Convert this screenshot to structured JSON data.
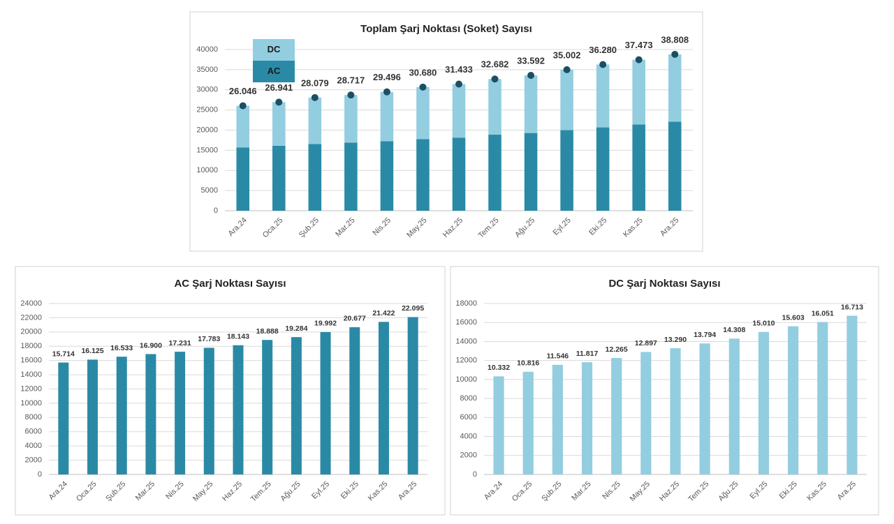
{
  "chart_data": [
    {
      "type": "stacked_bar",
      "title": "Toplam Şarj Noktası (Soket) Sayısı",
      "categories": [
        "Ara.24",
        "Oca.25",
        "Şub.25",
        "Mar.25",
        "Nis.25",
        "May.25",
        "Haz.25",
        "Tem.25",
        "Ağu.25",
        "Eyl.25",
        "Eki.25",
        "Kas.25",
        "Ara.25"
      ],
      "series": [
        {
          "name": "AC",
          "color": "#2a8aa6",
          "values": [
            15714,
            16125,
            16533,
            16900,
            17231,
            17783,
            18143,
            18888,
            19284,
            19992,
            20677,
            21422,
            22095
          ]
        },
        {
          "name": "DC",
          "color": "#93cde0",
          "values": [
            10332,
            10816,
            11546,
            11817,
            12265,
            12897,
            13290,
            13794,
            14308,
            15010,
            15603,
            16051,
            16713
          ]
        }
      ],
      "totals": {
        "color": "#1b4f63",
        "values": [
          26046,
          26941,
          28079,
          28717,
          29496,
          30680,
          31433,
          32682,
          33592,
          35002,
          36280,
          37473,
          38808
        ],
        "value_labels": [
          "26.046",
          "26.941",
          "28.079",
          "28.717",
          "29.496",
          "30.680",
          "31.433",
          "32.682",
          "33.592",
          "35.002",
          "36.280",
          "37.473",
          "38.808"
        ]
      },
      "ylim": [
        0,
        40000
      ],
      "yticks": [
        0,
        5000,
        10000,
        15000,
        20000,
        25000,
        30000,
        35000,
        40000
      ],
      "grid": true,
      "legend": "upper left"
    },
    {
      "type": "bar",
      "title": "AC Şarj Noktası Sayısı",
      "categories": [
        "Ara.24",
        "Oca.25",
        "Şub.25",
        "Mar.25",
        "Nis.25",
        "May.25",
        "Haz.25",
        "Tem.25",
        "Ağu.25",
        "Eyl.25",
        "Eki.25",
        "Kas.25",
        "Ara.25"
      ],
      "values": [
        15714,
        16125,
        16533,
        16900,
        17231,
        17783,
        18143,
        18888,
        19284,
        19992,
        20677,
        21422,
        22095
      ],
      "value_labels": [
        "15.714",
        "16.125",
        "16.533",
        "16.900",
        "17.231",
        "17.783",
        "18.143",
        "18.888",
        "19.284",
        "19.992",
        "20.677",
        "21.422",
        "22.095"
      ],
      "color": "#2a8aa6",
      "ylim": [
        0,
        24000
      ],
      "yticks": [
        0,
        2000,
        4000,
        6000,
        8000,
        10000,
        12000,
        14000,
        16000,
        18000,
        20000,
        22000,
        24000
      ],
      "grid": true
    },
    {
      "type": "bar",
      "title": "DC Şarj Noktası Sayısı",
      "categories": [
        "Ara.24",
        "Oca.25",
        "Şub.25",
        "Mar.25",
        "Nis.25",
        "May.25",
        "Haz.25",
        "Tem.25",
        "Ağu.25",
        "Eyl.25",
        "Eki.25",
        "Kas.25",
        "Ara.25"
      ],
      "values": [
        10332,
        10816,
        11546,
        11817,
        12265,
        12897,
        13290,
        13794,
        14308,
        15010,
        15603,
        16051,
        16713
      ],
      "value_labels": [
        "10.332",
        "10.816",
        "11.546",
        "11.817",
        "12.265",
        "12.897",
        "13.290",
        "13.794",
        "14.308",
        "15.010",
        "15.603",
        "16.051",
        "16.713"
      ],
      "color": "#93cde0",
      "ylim": [
        0,
        18000
      ],
      "yticks": [
        0,
        2000,
        4000,
        6000,
        8000,
        10000,
        12000,
        14000,
        16000,
        18000
      ],
      "grid": true
    }
  ]
}
